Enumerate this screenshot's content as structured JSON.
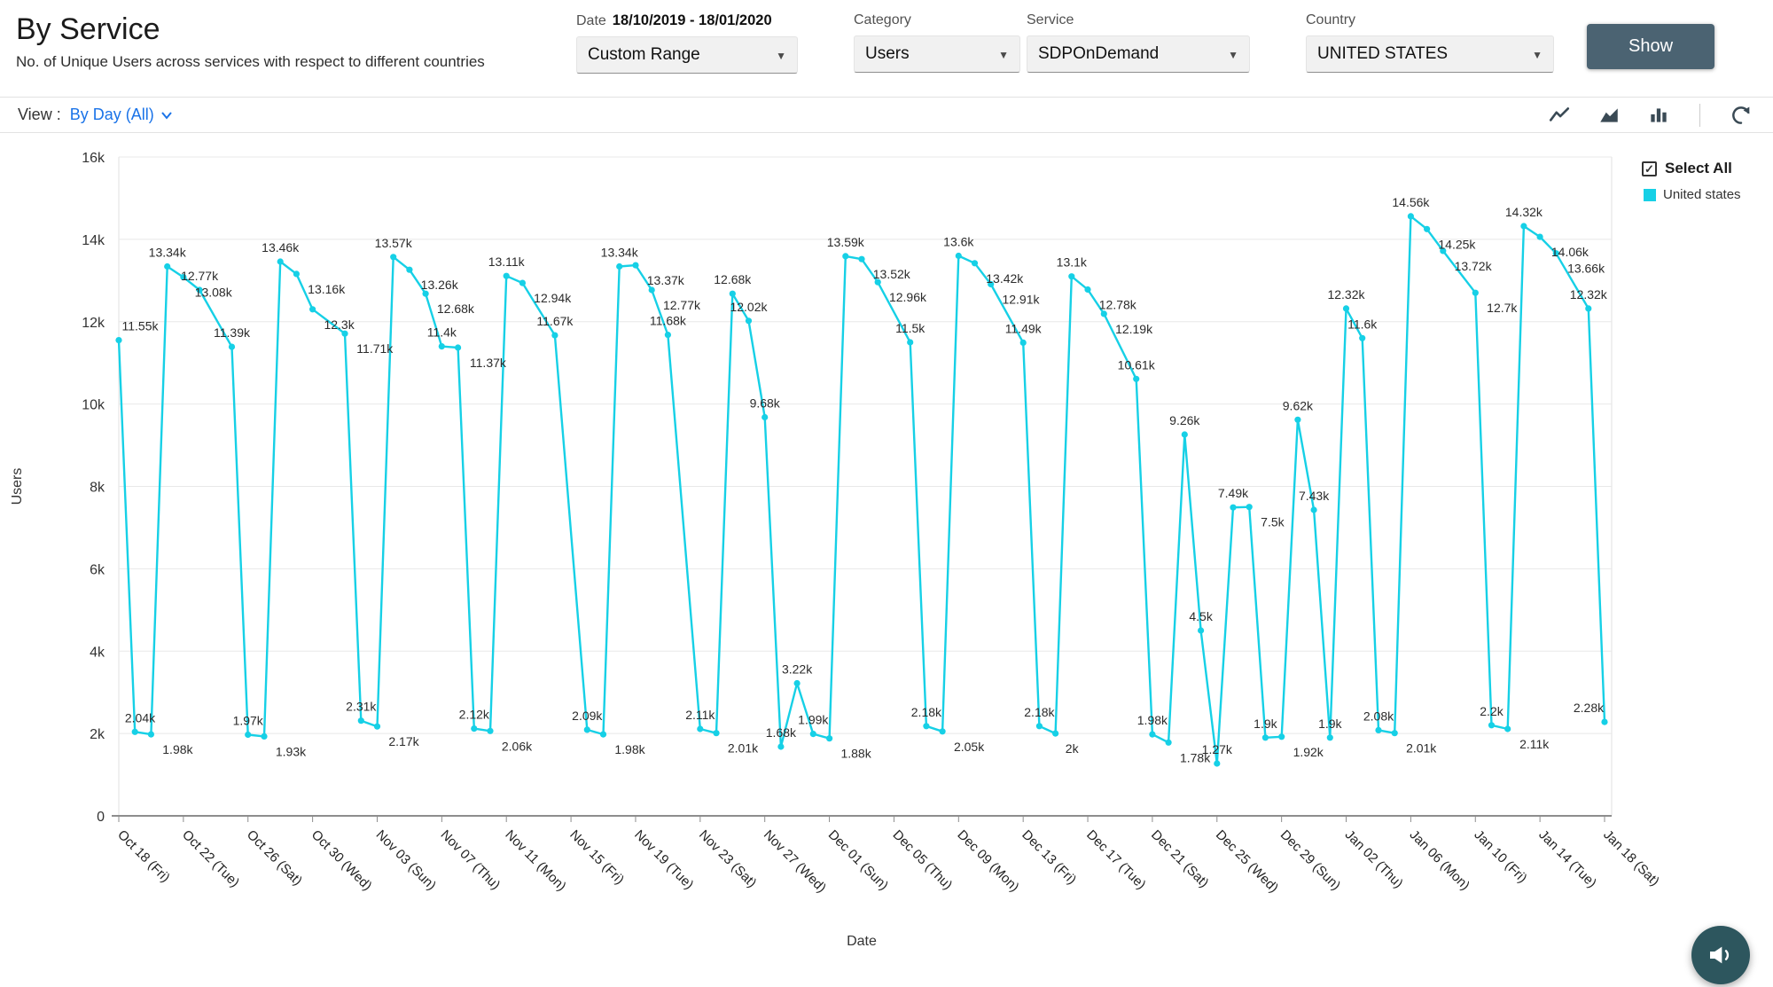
{
  "header": {
    "title": "By Service",
    "subtitle": "No. of Unique Users across services with respect to different countries"
  },
  "filters": {
    "date": {
      "label": "Date",
      "value": "18/10/2019 - 18/01/2020",
      "selected": "Custom Range"
    },
    "category": {
      "label": "Category",
      "selected": "Users"
    },
    "service": {
      "label": "Service",
      "selected": "SDPOnDemand"
    },
    "country": {
      "label": "Country",
      "selected": "UNITED STATES"
    },
    "show_button": "Show"
  },
  "view_bar": {
    "label": "View :",
    "value": "By Day (All)",
    "icons": [
      "line-chart-icon",
      "area-chart-icon",
      "bar-chart-icon",
      "refresh-icon"
    ]
  },
  "legend": {
    "select_all": "Select All",
    "select_all_checked": true,
    "series_name": "United states"
  },
  "fab": {
    "icon": "megaphone-icon"
  },
  "colors": {
    "series_line": "#16d0e6",
    "accent_link": "#1a73e8",
    "show_button": "#4b6372"
  },
  "chart_data": {
    "type": "line",
    "title": "",
    "xlabel": "Date",
    "ylabel": "Users",
    "ylim": [
      0,
      16
    ],
    "grid": true,
    "legend_position": "top-right",
    "x_domain_days": [
      0,
      92
    ],
    "yticks": [
      [
        0,
        "0"
      ],
      [
        2,
        "2k"
      ],
      [
        4,
        "4k"
      ],
      [
        6,
        "6k"
      ],
      [
        8,
        "8k"
      ],
      [
        10,
        "10k"
      ],
      [
        12,
        "12k"
      ],
      [
        14,
        "14k"
      ],
      [
        16,
        "16k"
      ]
    ],
    "xticks": [
      [
        0,
        "Oct 18 (Fri)"
      ],
      [
        4,
        "Oct 22 (Tue)"
      ],
      [
        8,
        "Oct 26 (Sat)"
      ],
      [
        12,
        "Oct 30 (Wed)"
      ],
      [
        16,
        "Nov 03 (Sun)"
      ],
      [
        20,
        "Nov 07 (Thu)"
      ],
      [
        24,
        "Nov 11 (Mon)"
      ],
      [
        28,
        "Nov 15 (Fri)"
      ],
      [
        32,
        "Nov 19 (Tue)"
      ],
      [
        36,
        "Nov 23 (Sat)"
      ],
      [
        40,
        "Nov 27 (Wed)"
      ],
      [
        44,
        "Dec 01 (Sun)"
      ],
      [
        48,
        "Dec 05 (Thu)"
      ],
      [
        52,
        "Dec 09 (Mon)"
      ],
      [
        56,
        "Dec 13 (Fri)"
      ],
      [
        60,
        "Dec 17 (Tue)"
      ],
      [
        64,
        "Dec 21 (Sat)"
      ],
      [
        68,
        "Dec 25 (Wed)"
      ],
      [
        72,
        "Dec 29 (Sun)"
      ],
      [
        76,
        "Jan 02 (Thu)"
      ],
      [
        80,
        "Jan 06 (Mon)"
      ],
      [
        84,
        "Jan 10 (Fri)"
      ],
      [
        88,
        "Jan 14 (Tue)"
      ],
      [
        92,
        "Jan 18 (Sat)"
      ]
    ],
    "series": [
      {
        "name": "United states",
        "color": "#16d0e6",
        "point_format": [
          "day_offset_from_Oct18_2019",
          "value_in_thousands",
          "data_label"
        ],
        "points": [
          [
            0,
            11.55,
            "11.55k"
          ],
          [
            1,
            2.04,
            "2.04k"
          ],
          [
            2,
            1.98,
            "1.98k"
          ],
          [
            3,
            13.34,
            "13.34k"
          ],
          [
            4,
            13.08,
            "13.08k"
          ],
          [
            5,
            12.77,
            "12.77k"
          ],
          [
            7,
            11.39,
            "11.39k"
          ],
          [
            8,
            1.97,
            "1.97k"
          ],
          [
            9,
            1.93,
            "1.93k"
          ],
          [
            10,
            13.46,
            "13.46k"
          ],
          [
            11,
            13.16,
            "13.16k"
          ],
          [
            12,
            12.3,
            "12.3k"
          ],
          [
            14,
            11.71,
            "11.71k"
          ],
          [
            15,
            2.31,
            "2.31k"
          ],
          [
            16,
            2.17,
            "2.17k"
          ],
          [
            17,
            13.57,
            "13.57k"
          ],
          [
            18,
            13.26,
            "13.26k"
          ],
          [
            19,
            12.68,
            "12.68k"
          ],
          [
            20,
            11.4,
            "11.4k"
          ],
          [
            21,
            11.37,
            "11.37k"
          ],
          [
            22,
            2.12,
            "2.12k"
          ],
          [
            23,
            2.06,
            "2.06k"
          ],
          [
            24,
            13.11,
            "13.11k"
          ],
          [
            25,
            12.94,
            "12.94k"
          ],
          [
            27,
            11.67,
            "11.67k"
          ],
          [
            29,
            2.09,
            "2.09k"
          ],
          [
            30,
            1.98,
            "1.98k"
          ],
          [
            31,
            13.34,
            "13.34k"
          ],
          [
            32,
            13.37,
            "13.37k"
          ],
          [
            33,
            12.77,
            "12.77k"
          ],
          [
            34,
            11.68,
            "11.68k"
          ],
          [
            36,
            2.11,
            "2.11k"
          ],
          [
            37,
            2.01,
            "2.01k"
          ],
          [
            38,
            12.68,
            "12.68k"
          ],
          [
            39,
            12.02,
            "12.02k"
          ],
          [
            40,
            9.68,
            "9.68k"
          ],
          [
            41,
            1.68,
            "1.68k"
          ],
          [
            42,
            3.22,
            "3.22k"
          ],
          [
            43,
            1.99,
            "1.99k"
          ],
          [
            44,
            1.88,
            "1.88k"
          ],
          [
            45,
            13.59,
            "13.59k"
          ],
          [
            46,
            13.52,
            "13.52k"
          ],
          [
            47,
            12.96,
            "12.96k"
          ],
          [
            49,
            11.5,
            "11.5k"
          ],
          [
            50,
            2.18,
            "2.18k"
          ],
          [
            51,
            2.05,
            "2.05k"
          ],
          [
            52,
            13.6,
            "13.6k"
          ],
          [
            53,
            13.42,
            "13.42k"
          ],
          [
            54,
            12.91,
            "12.91k"
          ],
          [
            56,
            11.49,
            "11.49k"
          ],
          [
            57,
            2.18,
            "2.18k"
          ],
          [
            58,
            2,
            "2k"
          ],
          [
            59,
            13.1,
            "13.1k"
          ],
          [
            60,
            12.78,
            "12.78k"
          ],
          [
            61,
            12.19,
            "12.19k"
          ],
          [
            63,
            10.61,
            "10.61k"
          ],
          [
            64,
            1.98,
            "1.98k"
          ],
          [
            65,
            1.78,
            "1.78k"
          ],
          [
            66,
            9.26,
            "9.26k"
          ],
          [
            67,
            4.5,
            "4.5k"
          ],
          [
            68,
            1.27,
            "1.27k"
          ],
          [
            69,
            7.49,
            "7.49k"
          ],
          [
            70,
            7.5,
            "7.5k"
          ],
          [
            71,
            1.9,
            "1.9k"
          ],
          [
            72,
            1.92,
            "1.92k"
          ],
          [
            73,
            9.62,
            "9.62k"
          ],
          [
            74,
            7.43,
            "7.43k"
          ],
          [
            75,
            1.9,
            "1.9k"
          ],
          [
            76,
            12.32,
            "12.32k"
          ],
          [
            77,
            11.6,
            "11.6k"
          ],
          [
            78,
            2.08,
            "2.08k"
          ],
          [
            79,
            2.01,
            "2.01k"
          ],
          [
            80,
            14.56,
            "14.56k"
          ],
          [
            81,
            14.25,
            "14.25k"
          ],
          [
            82,
            13.72,
            "13.72k"
          ],
          [
            84,
            12.7,
            "12.7k"
          ],
          [
            85,
            2.2,
            "2.2k"
          ],
          [
            86,
            2.11,
            "2.11k"
          ],
          [
            87,
            14.32,
            "14.32k"
          ],
          [
            88,
            14.06,
            "14.06k"
          ],
          [
            89,
            13.66,
            "13.66k"
          ],
          [
            91,
            12.32,
            "12.32k"
          ],
          [
            92,
            2.28,
            "2.28k"
          ]
        ]
      }
    ]
  }
}
